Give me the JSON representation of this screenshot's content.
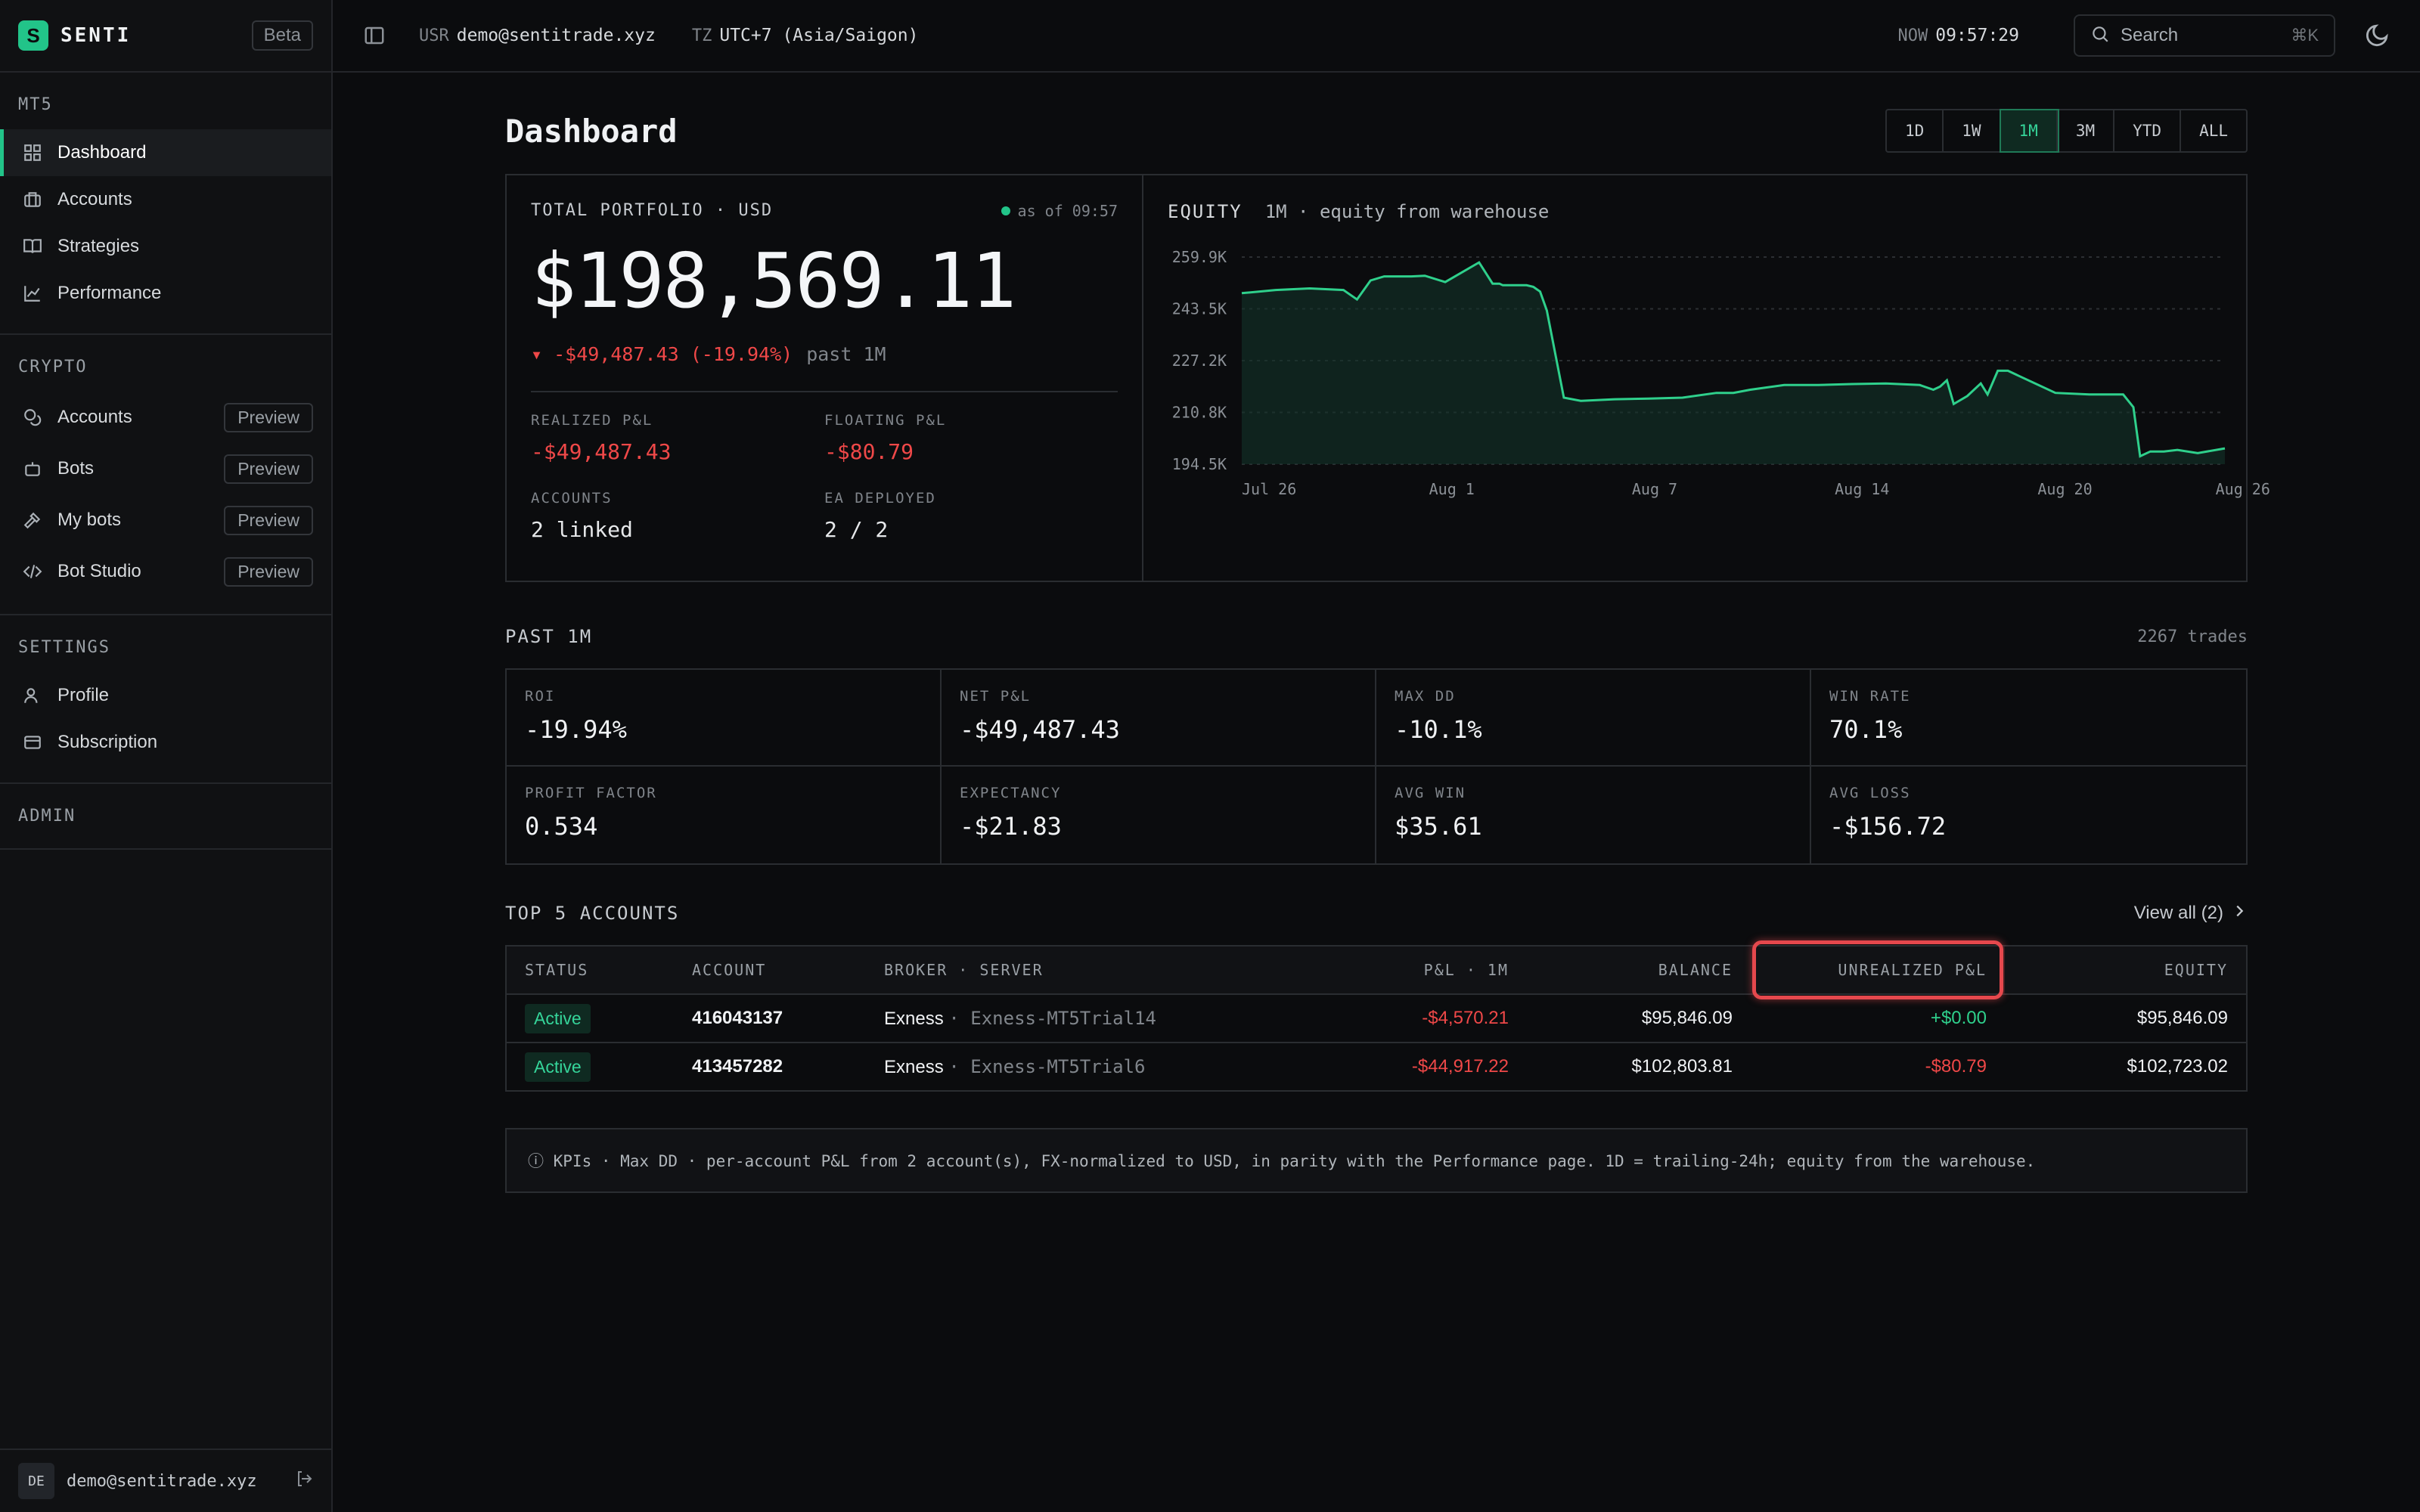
{
  "brand": {
    "name": "SENTI",
    "beta": "Beta",
    "logo_letter": "S"
  },
  "sidebar": {
    "mt5_title": "MT5",
    "mt5_items": [
      {
        "label": "Dashboard",
        "icon": "grid-icon"
      },
      {
        "label": "Accounts",
        "icon": "briefcase-icon"
      },
      {
        "label": "Strategies",
        "icon": "book-icon"
      },
      {
        "label": "Performance",
        "icon": "chart-icon"
      }
    ],
    "crypto_title": "CRYPTO",
    "crypto_items": [
      {
        "label": "Accounts",
        "badge": "Preview",
        "icon": "coins-icon"
      },
      {
        "label": "Bots",
        "badge": "Preview",
        "icon": "bot-icon"
      },
      {
        "label": "My bots",
        "badge": "Preview",
        "icon": "hammer-icon"
      },
      {
        "label": "Bot Studio",
        "badge": "Preview",
        "icon": "code-icon"
      }
    ],
    "settings_title": "SETTINGS",
    "settings_items": [
      {
        "label": "Profile",
        "icon": "user-icon"
      },
      {
        "label": "Subscription",
        "icon": "card-icon"
      }
    ],
    "admin_title": "ADMIN",
    "user": {
      "initials": "DE",
      "email": "demo@sentitrade.xyz"
    }
  },
  "topbar": {
    "usr_label": "USR",
    "usr": "demo@sentitrade.xyz",
    "tz_label": "TZ",
    "tz": "UTC+7 (Asia/Saigon)",
    "now_label": "NOW",
    "now": "09:57:29",
    "search_placeholder": "Search",
    "search_kbd": "⌘K"
  },
  "page": {
    "title": "Dashboard",
    "ranges": [
      "1D",
      "1W",
      "1M",
      "3M",
      "YTD",
      "ALL"
    ],
    "active_range": "1M"
  },
  "portfolio": {
    "label": "TOTAL PORTFOLIO · USD",
    "asof": "as of 09:57",
    "value": "$198,569.11",
    "change": "▾ -$49,487.43 (-19.94%)",
    "change_period": "past 1M",
    "realized_label": "REALIZED P&L",
    "realized": "-$49,487.43",
    "floating_label": "FLOATING P&L",
    "floating": "-$80.79",
    "accounts_label": "ACCOUNTS",
    "accounts": "2 linked",
    "ea_label": "EA DEPLOYED",
    "ea": "2 / 2"
  },
  "equity": {
    "title": "EQUITY",
    "subtitle": "1M · equity from warehouse"
  },
  "chart_data": {
    "type": "area",
    "title": "EQUITY",
    "subtitle": "1M · equity from warehouse",
    "y_ticks": [
      "259.9K",
      "243.5K",
      "227.2K",
      "210.8K",
      "194.5K"
    ],
    "ylim": [
      194500,
      259900
    ],
    "x_ticks": [
      "Jul 26",
      "Aug 1",
      "Aug 7",
      "Aug 14",
      "Aug 20",
      "Aug 26"
    ],
    "x": [
      0,
      0.5,
      1,
      2,
      3,
      3.4,
      3.8,
      4.2,
      4.6,
      5,
      5.4,
      6,
      7,
      7.4,
      7.6,
      7.7,
      7.9,
      8.1,
      8.4,
      8.6,
      8.8,
      9,
      9.5,
      10,
      11,
      12,
      13,
      14,
      14.5,
      15,
      16,
      17,
      18,
      19,
      20,
      20.4,
      20.6,
      20.8,
      21,
      21.4,
      21.8,
      22,
      22.3,
      22.6,
      23,
      24,
      25,
      26,
      26.3,
      26.5,
      26.8,
      27.2,
      27.6,
      28.2,
      29
    ],
    "values": [
      248500,
      249000,
      249500,
      250000,
      249500,
      246500,
      252500,
      253800,
      253800,
      253800,
      254000,
      252000,
      258200,
      251500,
      251500,
      251000,
      251000,
      251000,
      251000,
      250500,
      249000,
      243000,
      215500,
      214500,
      215000,
      215200,
      215500,
      217000,
      217000,
      218000,
      219500,
      219500,
      219800,
      220000,
      219500,
      218000,
      219000,
      221000,
      213500,
      216000,
      220000,
      216500,
      224000,
      224000,
      222000,
      217000,
      216500,
      216500,
      212500,
      197000,
      198500,
      198500,
      199000,
      198000,
      199500
    ],
    "series": [
      {
        "values": [
          248500,
          249000,
          249500,
          250000,
          249500,
          246500,
          252500,
          253800,
          253800,
          253800,
          254000,
          252000,
          258200,
          251500,
          251500,
          251000,
          251000,
          251000,
          251000,
          250500,
          249000,
          243000,
          215500,
          214500,
          215000,
          215200,
          215500,
          217000,
          217000,
          218000,
          219500,
          219500,
          219800,
          220000,
          219500,
          218000,
          219000,
          221000,
          213500,
          216000,
          220000,
          216500,
          224000,
          224000,
          222000,
          217000,
          216500,
          216500,
          212500,
          197000,
          198500,
          198500,
          199000,
          198000,
          199500
        ]
      }
    ],
    "grid": true,
    "line_color": "#2fd08c"
  },
  "kpis": {
    "title": "PAST 1M",
    "trades": "2267 trades",
    "items": [
      {
        "label": "ROI",
        "value": "-19.94%",
        "tone": "neg"
      },
      {
        "label": "NET P&L",
        "value": "-$49,487.43",
        "tone": "neg"
      },
      {
        "label": "MAX DD",
        "value": "-10.1%",
        "tone": "neg"
      },
      {
        "label": "WIN RATE",
        "value": "70.1%",
        "tone": "plain"
      },
      {
        "label": "PROFIT FACTOR",
        "value": "0.534",
        "tone": "neg"
      },
      {
        "label": "EXPECTANCY",
        "value": "-$21.83",
        "tone": "plain"
      },
      {
        "label": "AVG WIN",
        "value": "$35.61",
        "tone": "pos"
      },
      {
        "label": "AVG LOSS",
        "value": "-$156.72",
        "tone": "neg"
      }
    ]
  },
  "accounts": {
    "title": "TOP 5 ACCOUNTS",
    "view_all": "View all (2)",
    "headers": [
      "STATUS",
      "ACCOUNT",
      "BROKER · SERVER",
      "P&L · 1M",
      "BALANCE",
      "UNREALIZED P&L",
      "EQUITY"
    ],
    "rows": [
      {
        "status": "Active",
        "account": "416043137",
        "broker": "Exness",
        "server": "· Exness-MT5Trial14",
        "pnl": "-$4,570.21",
        "balance": "$95,846.09",
        "unrealized": "+$0.00",
        "equity": "$95,846.09"
      },
      {
        "status": "Active",
        "account": "413457282",
        "broker": "Exness",
        "server": "· Exness-MT5Trial6",
        "pnl": "-$44,917.22",
        "balance": "$102,803.81",
        "unrealized": "-$80.79",
        "equity": "$102,723.02"
      }
    ]
  },
  "note": "ⓘ KPIs · Max DD · per-account P&L from 2 account(s), FX-normalized to USD, in parity with the Performance page. 1D = trailing-24h; equity from the warehouse.",
  "colors": {
    "accent": "#22c489",
    "negative": "#ef4848",
    "positive": "#2fd08c",
    "highlight": "#e5484d"
  }
}
